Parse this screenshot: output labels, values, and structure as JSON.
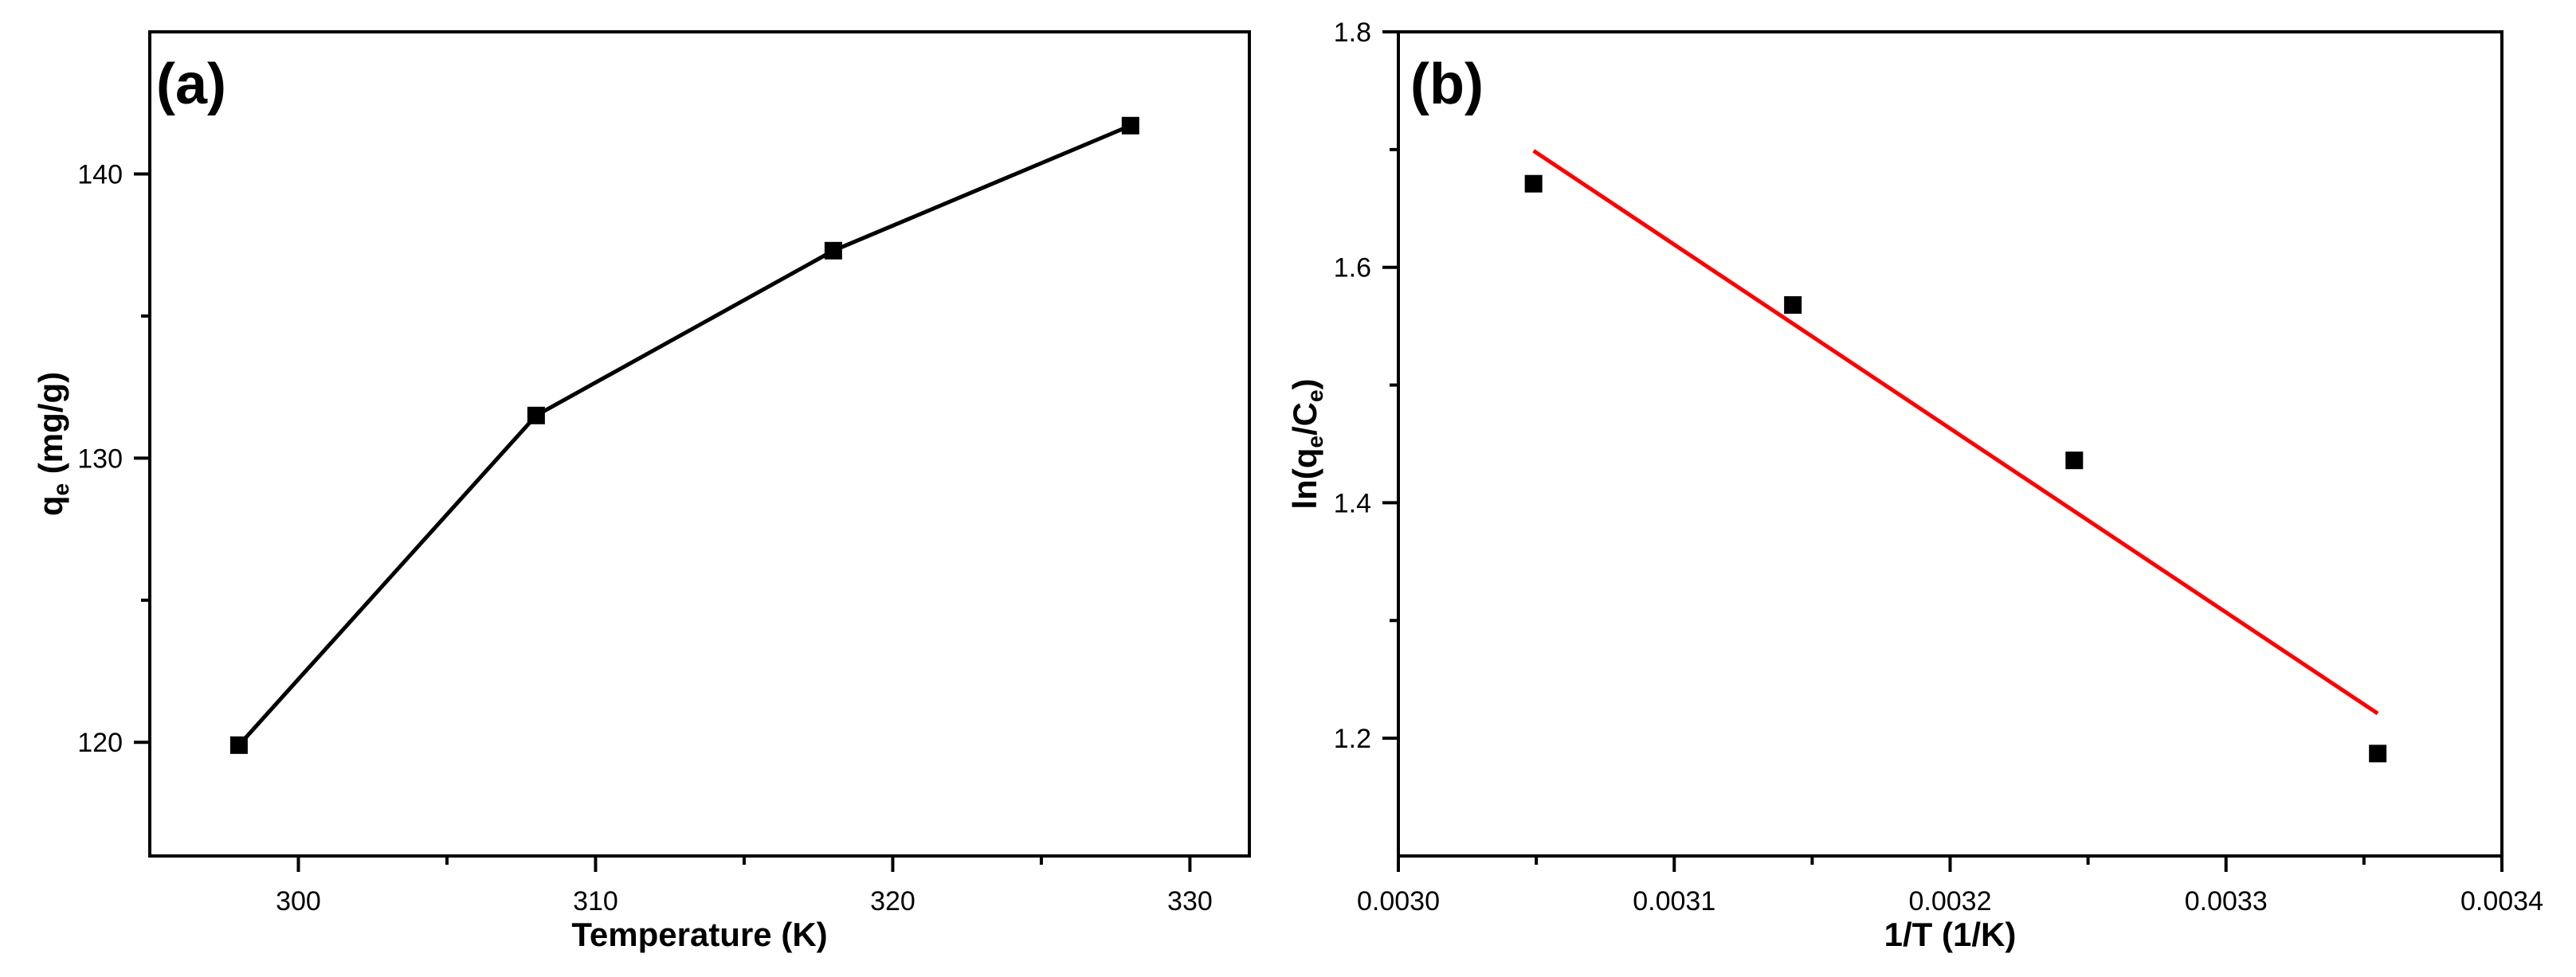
{
  "chart_data": [
    {
      "panel_label": "(a)",
      "type": "line",
      "xlabel": "Temperature (K)",
      "ylabel": {
        "base": "q",
        "sub": "e",
        "rest": " (mg/g)"
      },
      "xlim": [
        295,
        332
      ],
      "ylim": [
        116,
        145
      ],
      "x_ticks": [
        300,
        310,
        320,
        330
      ],
      "y_ticks": [
        120,
        130,
        140
      ],
      "series": [
        {
          "name": "qe",
          "marker": "square",
          "line": true,
          "color": "#000000",
          "x": [
            298,
            308,
            318,
            328
          ],
          "y": [
            119.9,
            131.5,
            137.3,
            141.7
          ]
        }
      ]
    },
    {
      "panel_label": "(b)",
      "type": "scatter",
      "xlabel": "1/T (1/K)",
      "ylabel": {
        "base": "ln(q",
        "sub1": "e",
        "mid": "/C",
        "sub2": "e",
        "rest": ")"
      },
      "xlim": [
        0.003,
        0.0034
      ],
      "ylim": [
        1.1,
        1.8
      ],
      "x_ticks": [
        "0.0030",
        "0.0031",
        "0.0032",
        "0.0033",
        "0.0034"
      ],
      "y_ticks": [
        "1.2",
        "1.4",
        "1.6",
        "1.8"
      ],
      "series": [
        {
          "name": "data",
          "marker": "square",
          "line": false,
          "color": "#000000",
          "x": [
            0.003049,
            0.003143,
            0.003245,
            0.003355
          ],
          "y": [
            1.671,
            1.568,
            1.436,
            1.187
          ]
        },
        {
          "name": "linear fit",
          "marker": "none",
          "line": true,
          "color": "#ff0000",
          "x": [
            0.003049,
            0.003355
          ],
          "y": [
            1.699,
            1.221
          ]
        }
      ]
    }
  ]
}
